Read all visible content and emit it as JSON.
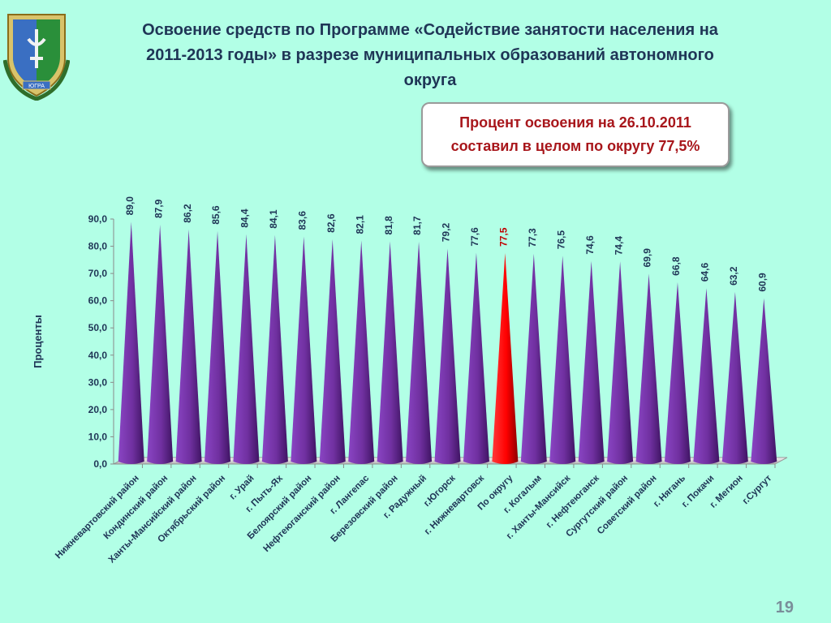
{
  "slide": {
    "title": "Освоение средств по Программе «Содействие занятости населения на\n2011-2013 годы» в разрезе муниципальных образований автономного\nокруга",
    "callout": "Процент освоения на 26.10.2011\nсоставил в целом по округу 77,5%",
    "page_number": "19",
    "emblem_text": "ЮГРА"
  },
  "colors": {
    "bar": "#7030a0",
    "highlight_bar": "#ff0000",
    "label": "#1f3556",
    "highlight_label": "#c00000",
    "background": "#b2ffe6"
  },
  "chart_data": {
    "type": "bar",
    "bar_shape": "cone",
    "ylabel": "Проценты",
    "ylim": [
      0,
      90
    ],
    "yticks": [
      "0,0",
      "10,0",
      "20,0",
      "30,0",
      "40,0",
      "50,0",
      "60,0",
      "70,0",
      "80,0",
      "90,0"
    ],
    "grid": false,
    "categories": [
      "Нижневартовский район",
      "Кондинский район",
      "Ханты-Мансийский район",
      "Октябрьский район",
      "г. Урай",
      "г. Пыть-Ях",
      "Белоярский район",
      "Нефтеюганский район",
      "г. Лангепас",
      "Березовский район",
      "г. Радужный",
      "г.Югорск",
      "г. Нижневартовск",
      "По округу",
      "г. Когалым",
      "г. Ханты-Мансийск",
      "г. Нефтеюганск",
      "Сургутский район",
      "Советский район",
      "г. Нягань",
      "г. Покачи",
      "г. Мегион",
      "г.Сургут"
    ],
    "values": [
      89.0,
      87.9,
      86.2,
      85.6,
      84.4,
      84.1,
      83.6,
      82.6,
      82.1,
      81.8,
      81.7,
      79.2,
      77.6,
      77.5,
      77.3,
      76.5,
      74.6,
      74.4,
      69.9,
      66.8,
      64.6,
      63.2,
      60.9
    ],
    "data_labels": [
      "89,0",
      "87,9",
      "86,2",
      "85,6",
      "84,4",
      "84,1",
      "83,6",
      "82,6",
      "82,1",
      "81,8",
      "81,7",
      "79,2",
      "77,6",
      "77,5",
      "77,3",
      "76,5",
      "74,6",
      "74,4",
      "69,9",
      "66,8",
      "64,6",
      "63,2",
      "60,9"
    ],
    "highlight_category": "По округу"
  }
}
